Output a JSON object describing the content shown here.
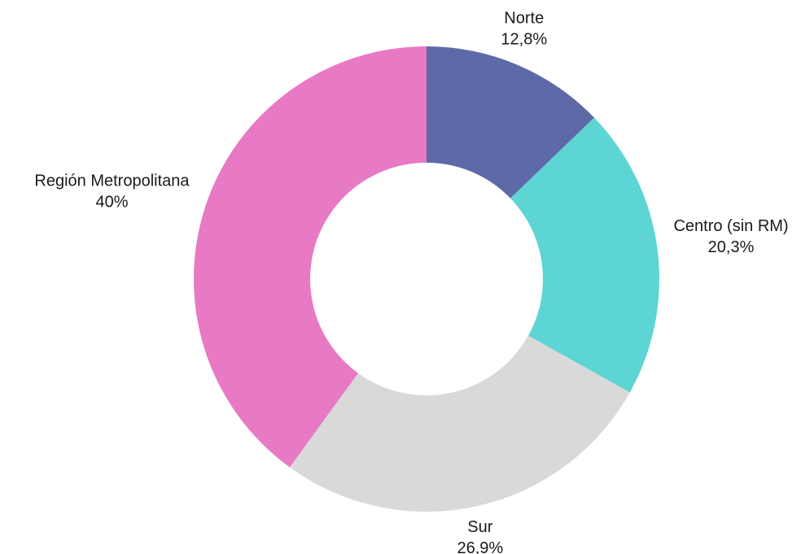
{
  "chart_data": {
    "type": "donut",
    "categories": [
      "Norte",
      "Centro (sin RM)",
      "Sur",
      "Región Metropolitana"
    ],
    "values": [
      12.8,
      20.3,
      26.9,
      40
    ],
    "value_labels": [
      "12,8%",
      "20,3%",
      "26,9%",
      "40%"
    ],
    "colors": [
      "#5e6aa8",
      "#5dd5d4",
      "#d9d9d9",
      "#e879c5"
    ]
  }
}
